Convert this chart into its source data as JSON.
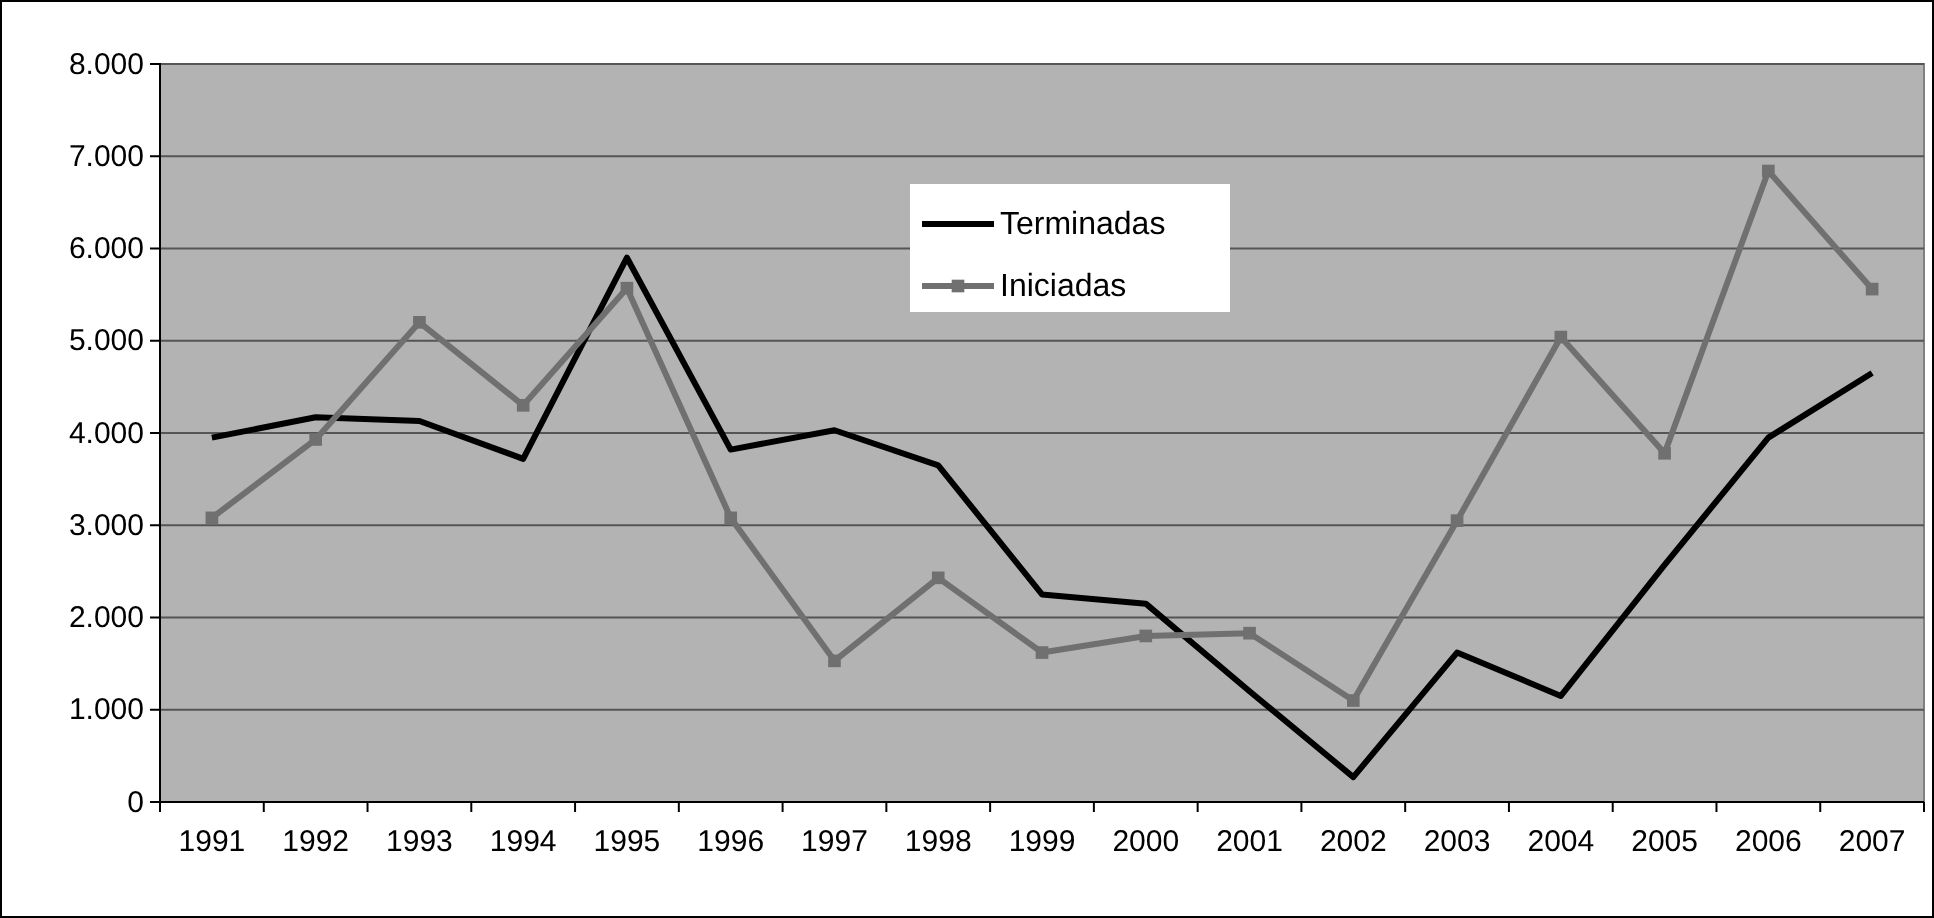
{
  "chart_data": {
    "type": "line",
    "categories": [
      "1991",
      "1992",
      "1993",
      "1994",
      "1995",
      "1996",
      "1997",
      "1998",
      "1999",
      "2000",
      "2001",
      "2002",
      "2003",
      "2004",
      "2005",
      "2006",
      "2007"
    ],
    "series": [
      {
        "name": "Terminadas",
        "color": "#000000",
        "marker": "none",
        "values": [
          3950,
          4170,
          4130,
          3720,
          5900,
          3820,
          4030,
          3650,
          2250,
          2150,
          1200,
          270,
          1620,
          1150,
          2570,
          3950,
          4650
        ]
      },
      {
        "name": "Iniciadas",
        "color": "#707070",
        "marker": "square",
        "values": [
          3080,
          3930,
          5200,
          4300,
          5570,
          3080,
          1530,
          2430,
          1620,
          1800,
          1830,
          1100,
          3050,
          5040,
          3780,
          6840,
          5560
        ]
      }
    ],
    "ylim": [
      0,
      8000
    ],
    "yticks": [
      0,
      {
        "value": 1000,
        "label": "1.000"
      },
      {
        "value": 2000,
        "label": "2.000"
      },
      {
        "value": 3000,
        "label": "3.000"
      },
      {
        "value": 4000,
        "label": "4.000"
      },
      {
        "value": 5000,
        "label": "5.000"
      },
      {
        "value": 6000,
        "label": "6.000"
      },
      {
        "value": 7000,
        "label": "7.000"
      },
      {
        "value": 8000,
        "label": "8.000"
      }
    ],
    "grid": "y",
    "legend": "top",
    "line_style": "solid"
  }
}
